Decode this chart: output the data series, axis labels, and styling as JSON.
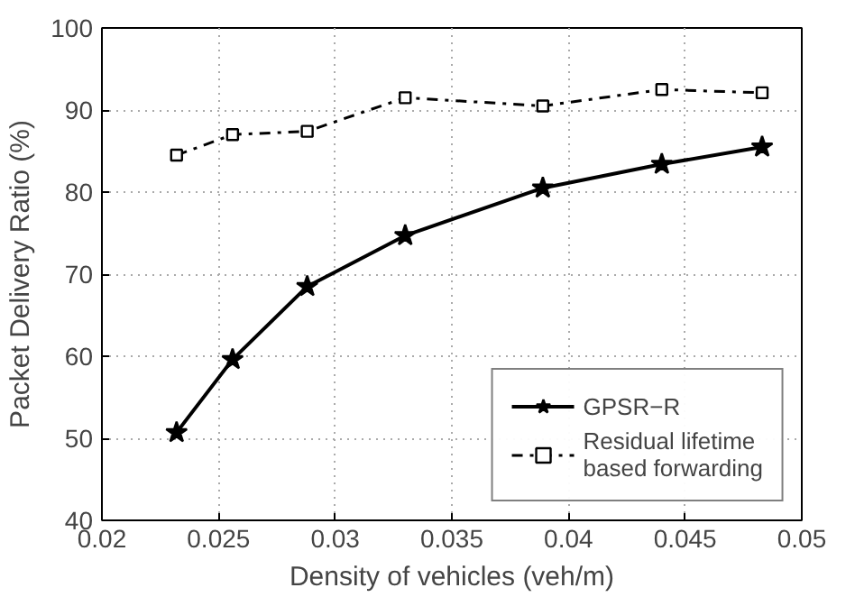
{
  "chart_data": {
    "type": "line",
    "xlabel": "Density of vehicles (veh/m)",
    "ylabel": "Packet Delivery Ratio (%)",
    "x": [
      0.0232,
      0.0256,
      0.0288,
      0.033,
      0.0389,
      0.044,
      0.0483
    ],
    "series": [
      {
        "name": "GPSR−R",
        "color": "#000000",
        "marker": "star",
        "line_style": "solid",
        "values": [
          50.7,
          59.6,
          68.5,
          74.7,
          80.5,
          83.4,
          85.5
        ]
      },
      {
        "name": "Residual lifetime based forwarding",
        "color": "#000000",
        "marker": "square",
        "line_style": "dashdot",
        "values": [
          84.5,
          87.0,
          87.4,
          91.5,
          90.5,
          92.5,
          92.1
        ]
      }
    ],
    "xlim": [
      0.02,
      0.05
    ],
    "xticks": [
      0.02,
      0.025,
      0.03,
      0.035,
      0.04,
      0.045,
      0.05
    ],
    "ylim": [
      40,
      100
    ],
    "yticks": [
      40,
      50,
      60,
      70,
      80,
      90,
      100
    ],
    "grid": true,
    "legend": "bottom right"
  }
}
